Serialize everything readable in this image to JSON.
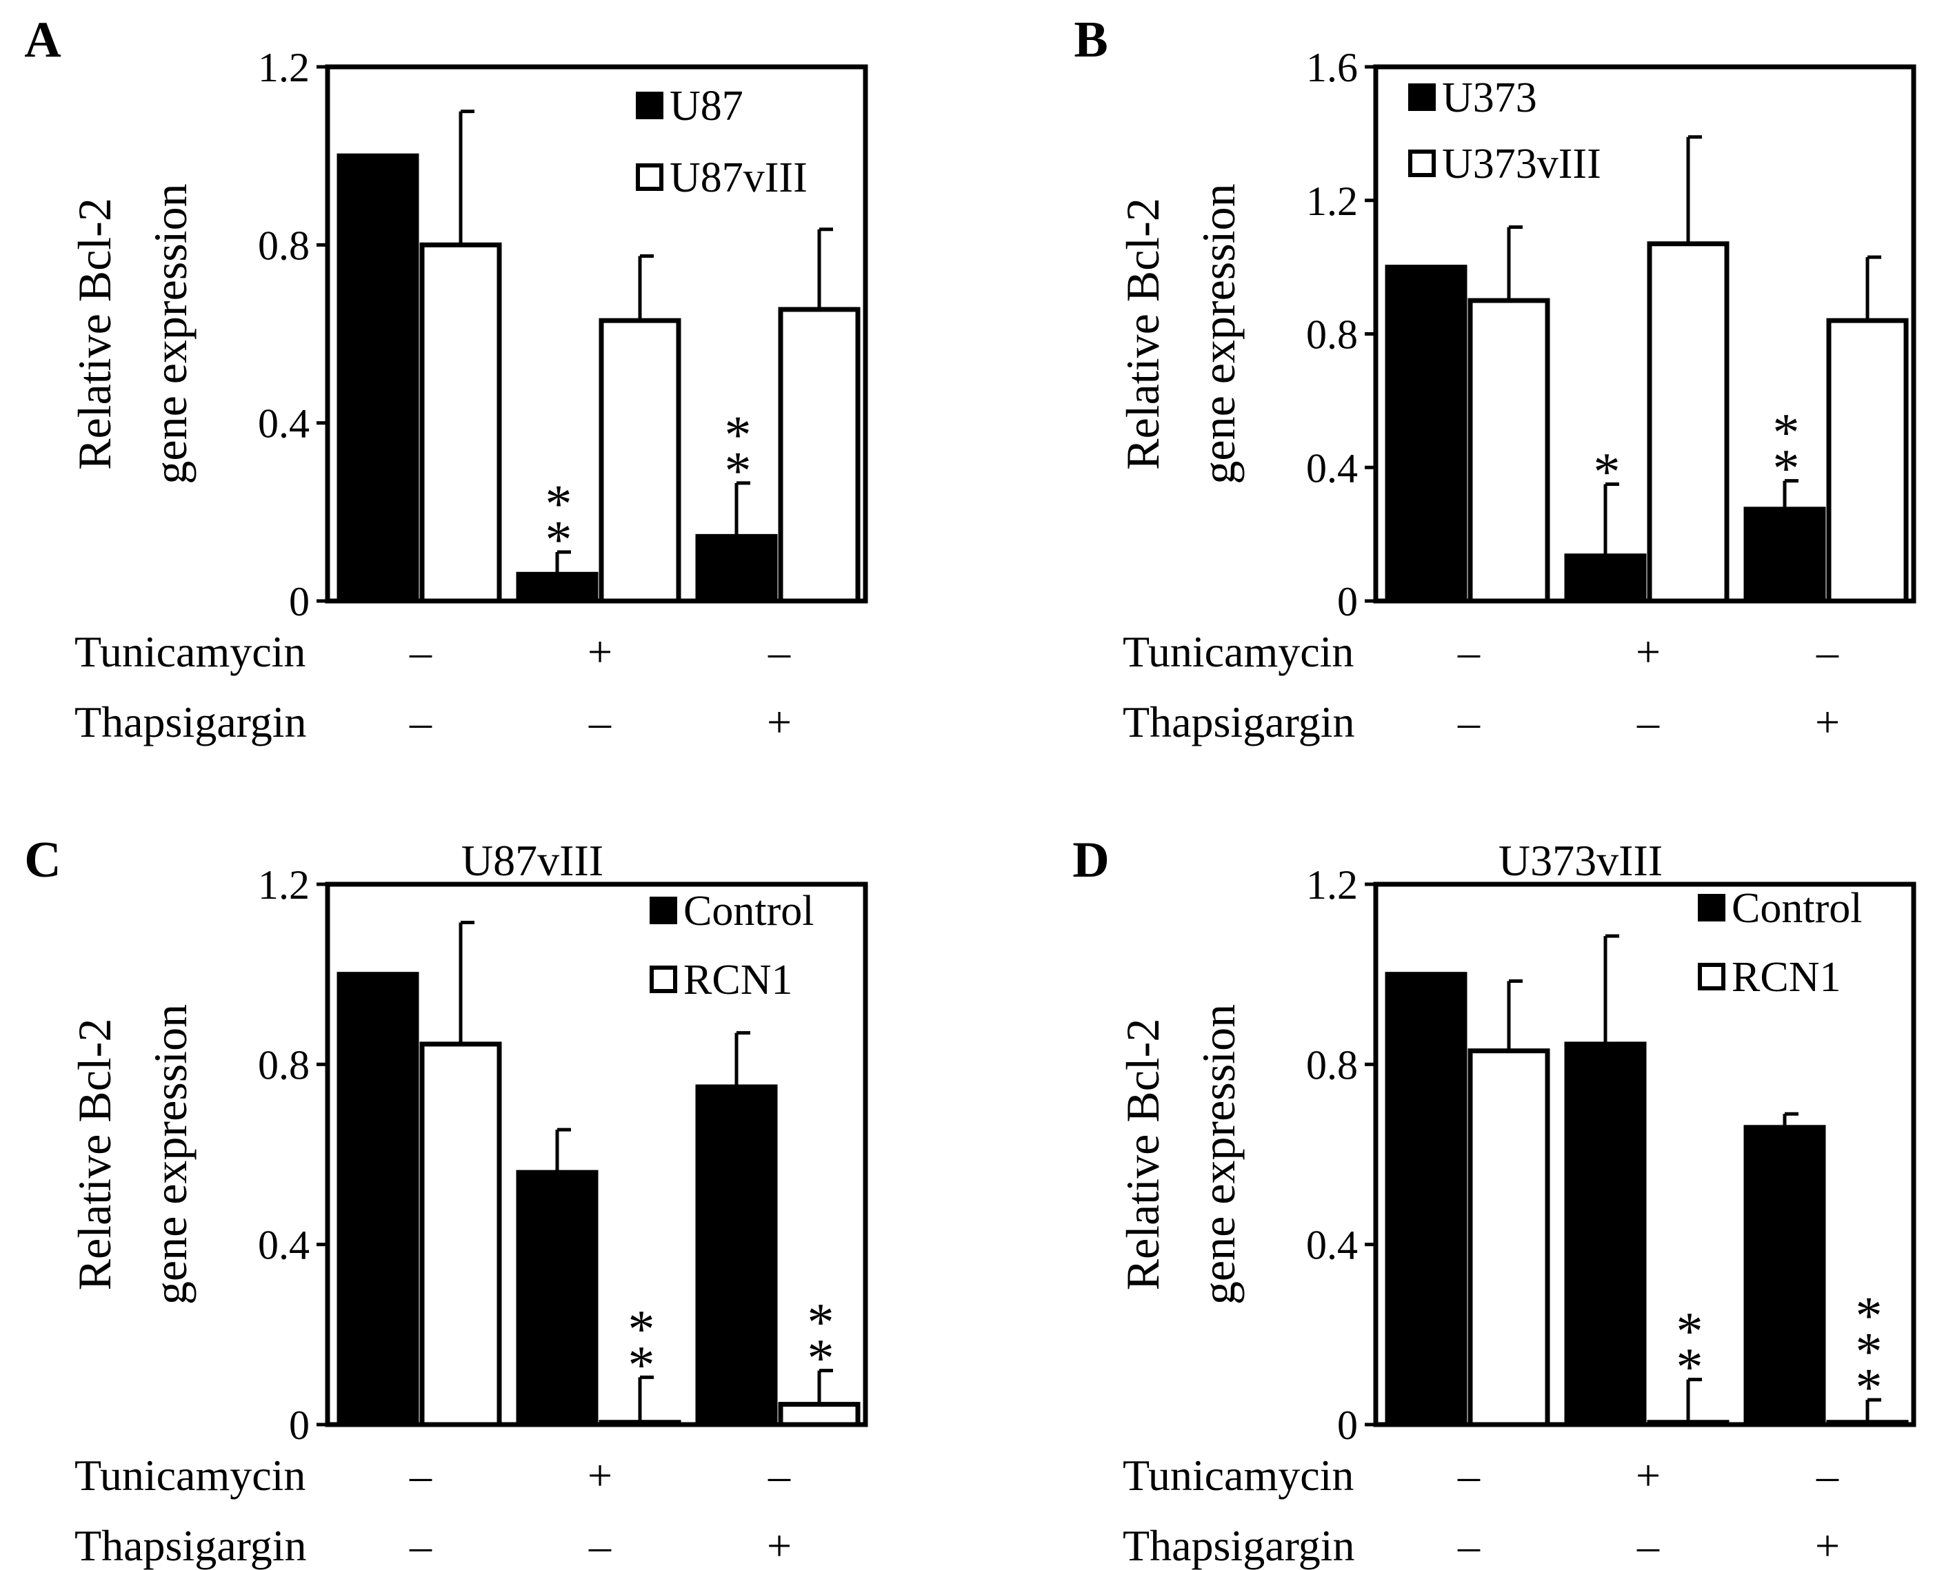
{
  "figure": {
    "description_free": true,
    "colors": {
      "filled": "#000000",
      "open": "#ffffff",
      "stroke": "#000000"
    }
  },
  "chart_data": [
    {
      "id": "A",
      "panel_label": "A",
      "type": "bar",
      "title": "",
      "ylabel_line1": "Relative Bcl-2",
      "ylabel_line2": "gene expression",
      "ylim": [
        0,
        1.2
      ],
      "yticks": [
        0,
        0.4,
        0.8,
        1.2
      ],
      "ytick_labels": [
        "0",
        "0.4",
        "0.8",
        "1.2"
      ],
      "legend_position": "top-right",
      "series": [
        {
          "name": "U87",
          "style": "filled",
          "values": [
            1.0,
            0.06,
            0.145
          ],
          "errors": [
            0,
            0.05,
            0.12
          ],
          "stars": [
            "",
            "**",
            "**"
          ]
        },
        {
          "name": "U87vIII",
          "style": "open",
          "values": [
            0.8,
            0.63,
            0.655
          ],
          "errors": [
            0.3,
            0.145,
            0.18
          ],
          "stars": [
            "",
            "",
            ""
          ]
        }
      ],
      "treatments": [
        {
          "label": "Tunicamycin",
          "marks": [
            "–",
            "+",
            "–"
          ]
        },
        {
          "label": "Thapsigargin",
          "marks": [
            "–",
            "–",
            "+"
          ]
        }
      ]
    },
    {
      "id": "B",
      "panel_label": "B",
      "type": "bar",
      "title": "",
      "ylabel_line1": "Relative Bcl-2",
      "ylabel_line2": "gene expression",
      "ylim": [
        0,
        1.6
      ],
      "yticks": [
        0,
        0.4,
        0.8,
        1.2,
        1.6
      ],
      "ytick_labels": [
        "0",
        "0.4",
        "0.8",
        "1.2",
        "1.6"
      ],
      "legend_position": "top-left",
      "series": [
        {
          "name": "U373",
          "style": "filled",
          "values": [
            1.0,
            0.135,
            0.275
          ],
          "errors": [
            0,
            0.215,
            0.085
          ],
          "stars": [
            "",
            "*",
            "**"
          ]
        },
        {
          "name": "U373vIII",
          "style": "open",
          "values": [
            0.9,
            1.07,
            0.84
          ],
          "errors": [
            0.22,
            0.32,
            0.19
          ],
          "stars": [
            "",
            "",
            ""
          ]
        }
      ],
      "treatments": [
        {
          "label": "Tunicamycin",
          "marks": [
            "–",
            "+",
            "–"
          ]
        },
        {
          "label": "Thapsigargin",
          "marks": [
            "–",
            "–",
            "+"
          ]
        }
      ]
    },
    {
      "id": "C",
      "panel_label": "C",
      "type": "bar",
      "title": "U87vIII",
      "ylabel_line1": "Relative Bcl-2",
      "ylabel_line2": "gene expression",
      "ylim": [
        0,
        1.2
      ],
      "yticks": [
        0,
        0.4,
        0.8,
        1.2
      ],
      "ytick_labels": [
        "0",
        "0.4",
        "0.8",
        "1.2"
      ],
      "legend_position": "top-right",
      "series": [
        {
          "name": "Control",
          "style": "filled",
          "values": [
            1.0,
            0.56,
            0.75
          ],
          "errors": [
            0,
            0.095,
            0.12
          ],
          "stars": [
            "",
            "",
            ""
          ]
        },
        {
          "name": "RCN1",
          "style": "open",
          "values": [
            0.845,
            0.005,
            0.045
          ],
          "errors": [
            0.27,
            0.1,
            0.075
          ],
          "stars": [
            "",
            "**",
            "**"
          ]
        }
      ],
      "treatments": [
        {
          "label": "Tunicamycin",
          "marks": [
            "–",
            "+",
            "–"
          ]
        },
        {
          "label": "Thapsigargin",
          "marks": [
            "–",
            "–",
            "+"
          ]
        }
      ]
    },
    {
      "id": "D",
      "panel_label": "D",
      "type": "bar",
      "title": "U373vIII",
      "ylabel_line1": "Relative Bcl-2",
      "ylabel_line2": "gene expression",
      "ylim": [
        0,
        1.2
      ],
      "yticks": [
        0,
        0.4,
        0.8,
        1.2
      ],
      "ytick_labels": [
        "0",
        "0.4",
        "0.8",
        "1.2"
      ],
      "legend_position": "top-right",
      "series": [
        {
          "name": "Control",
          "style": "filled",
          "values": [
            1.0,
            0.845,
            0.66
          ],
          "errors": [
            0,
            0.24,
            0.03
          ],
          "stars": [
            "",
            "",
            ""
          ]
        },
        {
          "name": "RCN1",
          "style": "open",
          "values": [
            0.83,
            0.005,
            0.005
          ],
          "errors": [
            0.155,
            0.095,
            0.05
          ],
          "stars": [
            "",
            "**",
            "***"
          ]
        }
      ],
      "treatments": [
        {
          "label": "Tunicamycin",
          "marks": [
            "–",
            "+",
            "–"
          ]
        },
        {
          "label": "Thapsigargin",
          "marks": [
            "–",
            "–",
            "+"
          ]
        }
      ]
    }
  ]
}
